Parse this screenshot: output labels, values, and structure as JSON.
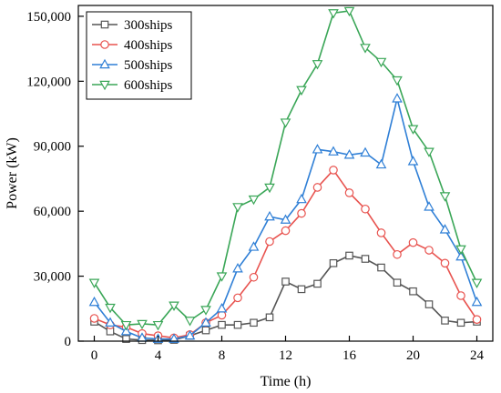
{
  "chart_data": {
    "type": "line",
    "xlabel": "Time (h)",
    "ylabel": "Power (kW)",
    "xlim": [
      -1,
      25
    ],
    "ylim": [
      0,
      155000
    ],
    "x_ticks": [
      0,
      4,
      8,
      12,
      16,
      20,
      24
    ],
    "x_tick_labels": [
      "0",
      "4",
      "8",
      "12",
      "16",
      "20",
      "24"
    ],
    "y_ticks": [
      0,
      30000,
      60000,
      90000,
      120000,
      150000
    ],
    "y_tick_labels": [
      "0",
      "30,000",
      "60,000",
      "90,000",
      "120,000",
      "150,000"
    ],
    "grid": false,
    "legend_position": "top-left",
    "x": [
      0,
      1,
      2,
      3,
      4,
      5,
      6,
      7,
      8,
      9,
      10,
      11,
      12,
      13,
      14,
      15,
      16,
      17,
      18,
      19,
      20,
      21,
      22,
      23,
      24
    ],
    "series": [
      {
        "name": "300ships",
        "color": "#555555",
        "marker": "square",
        "values": [
          9000,
          4500,
          1000,
          500,
          400,
          600,
          2500,
          5000,
          7500,
          7500,
          8500,
          11000,
          27500,
          24000,
          26500,
          36000,
          39500,
          38000,
          34000,
          27000,
          23000,
          17000,
          9500,
          8500,
          9000
        ]
      },
      {
        "name": "400ships",
        "color": "#e8534f",
        "marker": "circle",
        "values": [
          10500,
          7500,
          6500,
          3500,
          2500,
          1500,
          3000,
          8500,
          12000,
          20000,
          29500,
          46000,
          51000,
          59000,
          71000,
          79000,
          68500,
          61000,
          50000,
          40000,
          45500,
          42000,
          36000,
          21000,
          10000
        ]
      },
      {
        "name": "500ships",
        "color": "#2f7fd6",
        "marker": "triangle-up",
        "values": [
          18000,
          8500,
          4500,
          1500,
          1000,
          1000,
          2500,
          8500,
          15000,
          33500,
          43500,
          57500,
          56000,
          65500,
          88500,
          87500,
          86000,
          87000,
          81500,
          112000,
          83000,
          62000,
          51500,
          39000,
          18000
        ]
      },
      {
        "name": "600ships",
        "color": "#3aa657",
        "marker": "triangle-down",
        "values": [
          27000,
          15500,
          7500,
          8000,
          7500,
          16500,
          9500,
          14500,
          30000,
          62000,
          65500,
          71000,
          101000,
          116000,
          128000,
          151500,
          152500,
          135500,
          129000,
          120500,
          98000,
          87500,
          67000,
          42500,
          27000
        ]
      }
    ]
  }
}
